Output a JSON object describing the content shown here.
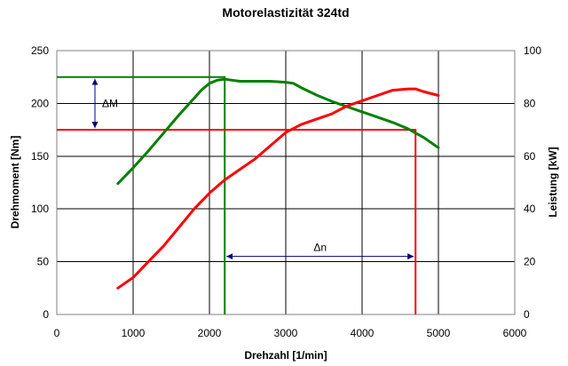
{
  "chart_data": {
    "type": "line",
    "title": "Motorelastizität 324td",
    "xlabel": "Drehzahl [1/min]",
    "ylabel": "Drehmoment [Nm]",
    "y2label": "Leistung [kW]",
    "xlim": [
      0,
      6000
    ],
    "ylim": [
      0,
      250
    ],
    "y2lim": [
      0,
      100
    ],
    "xticks": [
      0,
      1000,
      2000,
      3000,
      4000,
      5000,
      6000
    ],
    "yticks": [
      0,
      50,
      100,
      150,
      200,
      250
    ],
    "y2ticks": [
      0,
      20,
      40,
      60,
      80,
      100
    ],
    "grid": true,
    "legend": "none",
    "colors": {
      "torque": "#008000",
      "power": "#ff0000",
      "annotation": "#000080"
    },
    "series": [
      {
        "axis": "left",
        "color": "#008000",
        "points": [
          [
            800,
            124
          ],
          [
            1000,
            139
          ],
          [
            1200,
            155
          ],
          [
            1400,
            172
          ],
          [
            1600,
            189
          ],
          [
            1800,
            205
          ],
          [
            1900,
            213
          ],
          [
            2000,
            219
          ],
          [
            2100,
            222
          ],
          [
            2200,
            223
          ],
          [
            2300,
            222
          ],
          [
            2400,
            221
          ],
          [
            2600,
            221
          ],
          [
            2800,
            221
          ],
          [
            3000,
            220
          ],
          [
            3100,
            219
          ],
          [
            3200,
            215
          ],
          [
            3400,
            208
          ],
          [
            3600,
            202
          ],
          [
            3800,
            197
          ],
          [
            4000,
            192
          ],
          [
            4200,
            187
          ],
          [
            4400,
            182
          ],
          [
            4600,
            176
          ],
          [
            4800,
            168
          ],
          [
            5000,
            158
          ]
        ]
      },
      {
        "axis": "right",
        "color": "#ff0000",
        "points": [
          [
            800,
            10
          ],
          [
            1000,
            14
          ],
          [
            1200,
            20
          ],
          [
            1400,
            26
          ],
          [
            1600,
            33
          ],
          [
            1800,
            40
          ],
          [
            2000,
            46
          ],
          [
            2200,
            51
          ],
          [
            2400,
            55
          ],
          [
            2600,
            59
          ],
          [
            2800,
            64
          ],
          [
            3000,
            69
          ],
          [
            3200,
            72
          ],
          [
            3400,
            74
          ],
          [
            3600,
            76
          ],
          [
            3800,
            79
          ],
          [
            4000,
            81
          ],
          [
            4200,
            83
          ],
          [
            4400,
            85
          ],
          [
            4600,
            85.5
          ],
          [
            4700,
            85.5
          ],
          [
            4800,
            84.5
          ],
          [
            5000,
            83
          ]
        ]
      }
    ],
    "annotations": {
      "torque_ref": {
        "y": 225,
        "x_end": 2200,
        "x_drop": 2200,
        "drop_to": 0
      },
      "power_ref": {
        "y2": 70,
        "x_end": 4700,
        "x_drop": 4700,
        "drop_to": 0
      },
      "delta_m": {
        "label": "ΔM",
        "x": 500,
        "y_from": 225,
        "y_to": 175
      },
      "delta_n": {
        "label": "Δn",
        "y": 55,
        "x_from": 2200,
        "x_to": 4700
      }
    }
  }
}
